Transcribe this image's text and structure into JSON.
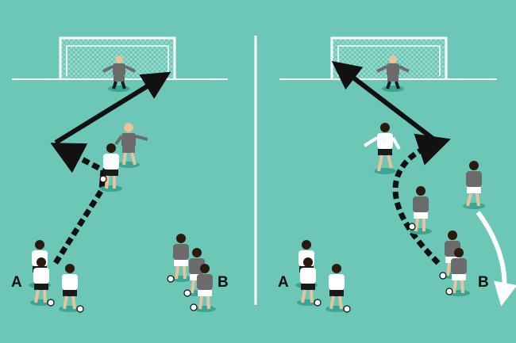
{
  "colors": {
    "pitch": "#6cc7b6",
    "line": "#ffffff",
    "arrow": "#111111",
    "team_white_shirt": "#ffffff",
    "team_grey_shirt": "#6b6b6b",
    "skin": "#e9c39b",
    "shorts_dark": "#1a1a1a",
    "shadow": "#3aa592"
  },
  "panels": [
    {
      "name": "left",
      "labels": {
        "group_a": "A",
        "group_b": "B"
      }
    },
    {
      "name": "right",
      "labels": {
        "group_a": "A",
        "group_b": "B"
      }
    }
  ],
  "legend": {
    "solid_arrow": "shot",
    "dashed_arrow": "dribble",
    "white_curved_arrow": "run"
  }
}
